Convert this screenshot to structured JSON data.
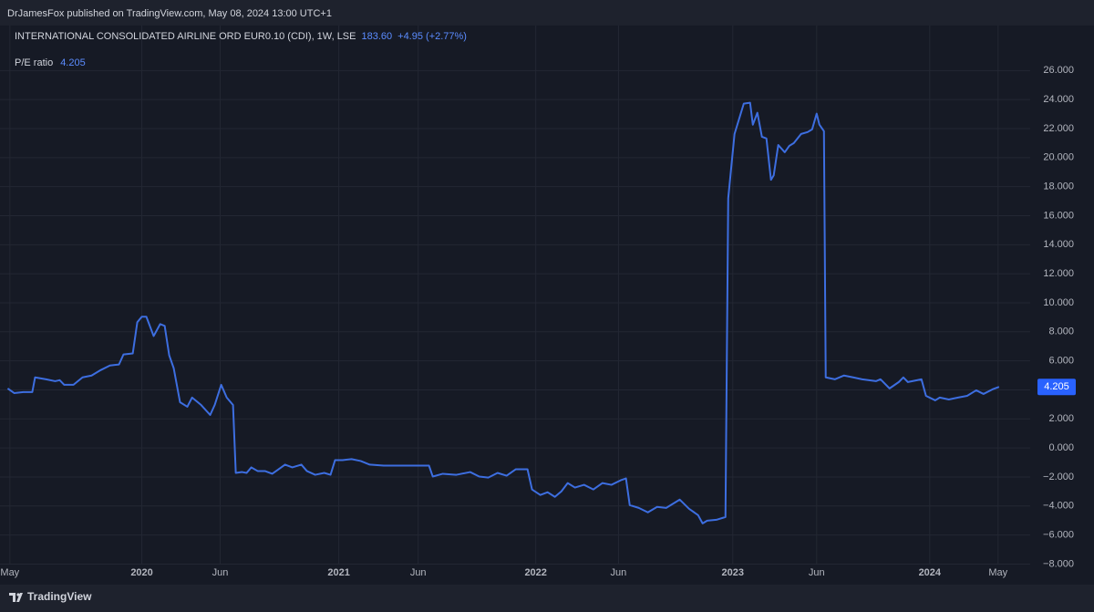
{
  "chart_data": {
    "type": "line",
    "published_by": "DrJamesFox published on TradingView.com, May 08, 2024 13:00 UTC+1",
    "symbol": "INTERNATIONAL CONSOLIDATED AIRLINE ORD EUR0.10 (CDI), 1W, LSE",
    "price": "183.60",
    "change": "+4.95 (+2.77%)",
    "brand": "TradingView",
    "grid": true,
    "x": [
      2019.319,
      2019.352,
      2019.398,
      2019.444,
      2019.458,
      2019.514,
      2019.56,
      2019.583,
      2019.606,
      2019.653,
      2019.699,
      2019.745,
      2019.792,
      2019.838,
      2019.884,
      2019.907,
      2019.954,
      2019.977,
      2020.0,
      2020.023,
      2020.06,
      2020.093,
      2020.116,
      2020.139,
      2020.162,
      2020.194,
      2020.231,
      2020.255,
      2020.301,
      2020.347,
      2020.37,
      2020.403,
      2020.431,
      2020.463,
      2020.477,
      2020.509,
      2020.532,
      2020.556,
      2020.588,
      2020.625,
      2020.662,
      2020.694,
      2020.727,
      2020.764,
      2020.81,
      2020.838,
      2020.88,
      2020.926,
      2020.958,
      2020.981,
      2021.019,
      2021.065,
      2021.111,
      2021.157,
      2021.227,
      2021.319,
      2021.412,
      2021.458,
      2021.477,
      2021.528,
      2021.597,
      2021.667,
      2021.713,
      2021.759,
      2021.806,
      2021.852,
      2021.898,
      2021.958,
      2021.981,
      2022.023,
      2022.06,
      2022.097,
      2022.13,
      2022.162,
      2022.199,
      2022.245,
      2022.292,
      2022.338,
      2022.384,
      2022.431,
      2022.458,
      2022.477,
      2022.523,
      2022.569,
      2022.616,
      2022.662,
      2022.731,
      2022.778,
      2022.824,
      2022.847,
      2022.87,
      2022.917,
      2022.963,
      2022.977,
      2023.009,
      2023.056,
      2023.088,
      2023.102,
      2023.125,
      2023.148,
      2023.171,
      2023.194,
      2023.208,
      2023.231,
      2023.264,
      2023.287,
      2023.31,
      2023.347,
      2023.38,
      2023.403,
      2023.426,
      2023.44,
      2023.463,
      2023.472,
      2023.519,
      2023.565,
      2023.611,
      2023.657,
      2023.727,
      2023.75,
      2023.796,
      2023.843,
      2023.866,
      2023.889,
      2023.958,
      2023.981,
      2024.028,
      2024.051,
      2024.097,
      2024.144,
      2024.19,
      2024.236,
      2024.273,
      2024.319,
      2024.352
    ],
    "series": [
      {
        "name": "P/E ratio",
        "color": "#3d6ee0",
        "values": [
          4.1,
          3.78,
          3.85,
          3.85,
          4.86,
          4.73,
          4.6,
          4.67,
          4.35,
          4.35,
          4.86,
          4.99,
          5.37,
          5.68,
          5.75,
          6.44,
          6.51,
          8.66,
          9.04,
          9.04,
          7.71,
          8.53,
          8.41,
          6.38,
          5.49,
          3.15,
          2.84,
          3.47,
          2.96,
          2.27,
          2.96,
          4.35,
          3.47,
          2.96,
          -1.72,
          -1.66,
          -1.72,
          -1.34,
          -1.59,
          -1.59,
          -1.78,
          -1.47,
          -1.15,
          -1.34,
          -1.15,
          -1.59,
          -1.85,
          -1.72,
          -1.85,
          -0.84,
          -0.84,
          -0.77,
          -0.9,
          -1.15,
          -1.22,
          -1.22,
          -1.22,
          -1.22,
          -1.97,
          -1.78,
          -1.85,
          -1.66,
          -1.97,
          -2.04,
          -1.72,
          -1.91,
          -1.47,
          -1.47,
          -2.86,
          -3.24,
          -3.05,
          -3.37,
          -2.99,
          -2.42,
          -2.73,
          -2.54,
          -2.86,
          -2.42,
          -2.54,
          -2.23,
          -2.1,
          -3.94,
          -4.13,
          -4.44,
          -4.06,
          -4.13,
          -3.56,
          -4.19,
          -4.63,
          -5.2,
          -5.01,
          -4.95,
          -4.76,
          17.2,
          21.63,
          23.72,
          23.78,
          22.27,
          23.09,
          21.44,
          21.32,
          18.47,
          18.78,
          20.87,
          20.37,
          20.81,
          21.0,
          21.63,
          21.76,
          21.95,
          23.03,
          22.27,
          21.82,
          4.86,
          4.73,
          4.99,
          4.86,
          4.73,
          4.6,
          4.73,
          4.1,
          4.54,
          4.86,
          4.54,
          4.73,
          3.59,
          3.28,
          3.47,
          3.34,
          3.47,
          3.59,
          3.97,
          3.72,
          4.04,
          4.205
        ]
      }
    ],
    "xlim": [
      2019.28,
      2024.51
    ],
    "xticks": [
      {
        "value": 2019.33,
        "label": "May"
      },
      {
        "value": 2020,
        "label": "2020"
      },
      {
        "value": 2020.398,
        "label": "Jun"
      },
      {
        "value": 2021,
        "label": "2021"
      },
      {
        "value": 2021.403,
        "label": "Jun"
      },
      {
        "value": 2022,
        "label": "2022"
      },
      {
        "value": 2022.42,
        "label": "Jun"
      },
      {
        "value": 2023,
        "label": "2023"
      },
      {
        "value": 2023.426,
        "label": "Jun"
      },
      {
        "value": 2024,
        "label": "2024"
      },
      {
        "value": 2024.347,
        "label": "May"
      }
    ],
    "ylim": [
      -8.6,
      29.1
    ],
    "yticks": [
      {
        "value": 26,
        "label": "26.000"
      },
      {
        "value": 24,
        "label": "24.000"
      },
      {
        "value": 22,
        "label": "22.000"
      },
      {
        "value": 20,
        "label": "20.000"
      },
      {
        "value": 18,
        "label": "18.000"
      },
      {
        "value": 16,
        "label": "16.000"
      },
      {
        "value": 14,
        "label": "14.000"
      },
      {
        "value": 12,
        "label": "12.000"
      },
      {
        "value": 10,
        "label": "10.000"
      },
      {
        "value": 8,
        "label": "8.000"
      },
      {
        "value": 6,
        "label": "6.000"
      },
      {
        "value": 4,
        "label": "4.000"
      },
      {
        "value": 2,
        "label": "2.000"
      },
      {
        "value": 0,
        "label": "0.000"
      },
      {
        "value": -2,
        "label": "−2.000"
      },
      {
        "value": -4,
        "label": "−4.000"
      },
      {
        "value": -6,
        "label": "−6.000"
      },
      {
        "value": -8,
        "label": "−8.000"
      }
    ]
  }
}
